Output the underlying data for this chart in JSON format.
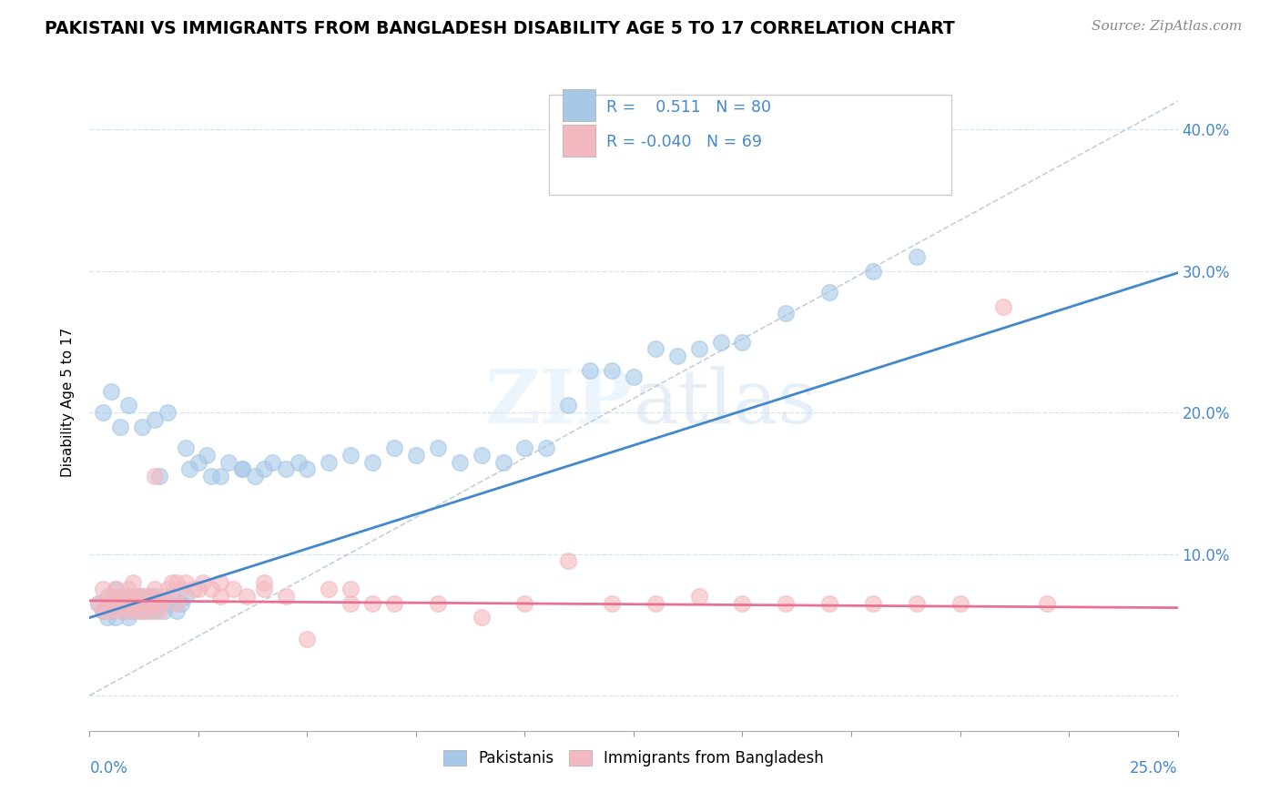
{
  "title": "PAKISTANI VS IMMIGRANTS FROM BANGLADESH DISABILITY AGE 5 TO 17 CORRELATION CHART",
  "source": "Source: ZipAtlas.com",
  "ylabel": "Disability Age 5 to 17",
  "xlim": [
    0.0,
    0.25
  ],
  "ylim": [
    -0.025,
    0.44
  ],
  "r_blue": 0.511,
  "n_blue": 80,
  "r_pink": -0.04,
  "n_pink": 69,
  "blue_color": "#a8c8e8",
  "pink_color": "#f4b8c0",
  "blue_line_color": "#4488cc",
  "pink_line_color": "#e87090",
  "legend_label_blue": "Pakistanis",
  "legend_label_pink": "Immigrants from Bangladesh",
  "watermark": "ZIPatlas",
  "ytick_values": [
    0.0,
    0.1,
    0.2,
    0.3,
    0.4
  ],
  "ytick_labels": [
    "",
    "10.0%",
    "20.0%",
    "30.0%",
    "40.0%"
  ],
  "axis_label_color": "#4488cc",
  "grid_color": "#c8ddf0",
  "blue_x": [
    0.002,
    0.003,
    0.004,
    0.004,
    0.005,
    0.005,
    0.006,
    0.006,
    0.007,
    0.007,
    0.008,
    0.008,
    0.009,
    0.009,
    0.01,
    0.01,
    0.011,
    0.011,
    0.012,
    0.012,
    0.013,
    0.013,
    0.014,
    0.014,
    0.015,
    0.015,
    0.016,
    0.016,
    0.017,
    0.018,
    0.019,
    0.02,
    0.021,
    0.022,
    0.023,
    0.025,
    0.027,
    0.03,
    0.032,
    0.035,
    0.038,
    0.04,
    0.042,
    0.045,
    0.048,
    0.05,
    0.055,
    0.06,
    0.065,
    0.07,
    0.075,
    0.08,
    0.085,
    0.09,
    0.095,
    0.1,
    0.105,
    0.11,
    0.115,
    0.12,
    0.125,
    0.13,
    0.135,
    0.14,
    0.145,
    0.15,
    0.16,
    0.17,
    0.18,
    0.19,
    0.003,
    0.005,
    0.007,
    0.009,
    0.012,
    0.015,
    0.018,
    0.022,
    0.028,
    0.035
  ],
  "blue_y": [
    0.065,
    0.06,
    0.07,
    0.055,
    0.065,
    0.06,
    0.075,
    0.055,
    0.065,
    0.07,
    0.06,
    0.065,
    0.07,
    0.055,
    0.065,
    0.06,
    0.07,
    0.065,
    0.06,
    0.07,
    0.065,
    0.06,
    0.07,
    0.065,
    0.06,
    0.07,
    0.065,
    0.155,
    0.06,
    0.065,
    0.07,
    0.06,
    0.065,
    0.07,
    0.16,
    0.165,
    0.17,
    0.155,
    0.165,
    0.16,
    0.155,
    0.16,
    0.165,
    0.16,
    0.165,
    0.16,
    0.165,
    0.17,
    0.165,
    0.175,
    0.17,
    0.175,
    0.165,
    0.17,
    0.165,
    0.175,
    0.175,
    0.205,
    0.23,
    0.23,
    0.225,
    0.245,
    0.24,
    0.245,
    0.25,
    0.25,
    0.27,
    0.285,
    0.3,
    0.31,
    0.2,
    0.215,
    0.19,
    0.205,
    0.19,
    0.195,
    0.2,
    0.175,
    0.155,
    0.16
  ],
  "pink_x": [
    0.002,
    0.003,
    0.004,
    0.005,
    0.005,
    0.006,
    0.007,
    0.007,
    0.008,
    0.008,
    0.009,
    0.009,
    0.01,
    0.01,
    0.011,
    0.011,
    0.012,
    0.012,
    0.013,
    0.013,
    0.014,
    0.014,
    0.015,
    0.015,
    0.016,
    0.016,
    0.017,
    0.018,
    0.019,
    0.02,
    0.021,
    0.022,
    0.024,
    0.026,
    0.028,
    0.03,
    0.033,
    0.036,
    0.04,
    0.045,
    0.05,
    0.055,
    0.06,
    0.065,
    0.07,
    0.08,
    0.09,
    0.1,
    0.11,
    0.12,
    0.13,
    0.14,
    0.15,
    0.16,
    0.17,
    0.18,
    0.19,
    0.2,
    0.21,
    0.22,
    0.003,
    0.006,
    0.01,
    0.015,
    0.02,
    0.025,
    0.03,
    0.04,
    0.06
  ],
  "pink_y": [
    0.065,
    0.06,
    0.065,
    0.07,
    0.06,
    0.065,
    0.07,
    0.06,
    0.065,
    0.07,
    0.06,
    0.075,
    0.065,
    0.07,
    0.06,
    0.065,
    0.07,
    0.06,
    0.065,
    0.07,
    0.06,
    0.065,
    0.155,
    0.07,
    0.06,
    0.065,
    0.07,
    0.075,
    0.08,
    0.065,
    0.075,
    0.08,
    0.075,
    0.08,
    0.075,
    0.07,
    0.075,
    0.07,
    0.075,
    0.07,
    0.04,
    0.075,
    0.065,
    0.065,
    0.065,
    0.065,
    0.055,
    0.065,
    0.095,
    0.065,
    0.065,
    0.07,
    0.065,
    0.065,
    0.065,
    0.065,
    0.065,
    0.065,
    0.275,
    0.065,
    0.075,
    0.075,
    0.08,
    0.075,
    0.08,
    0.075,
    0.08,
    0.08,
    0.075
  ]
}
